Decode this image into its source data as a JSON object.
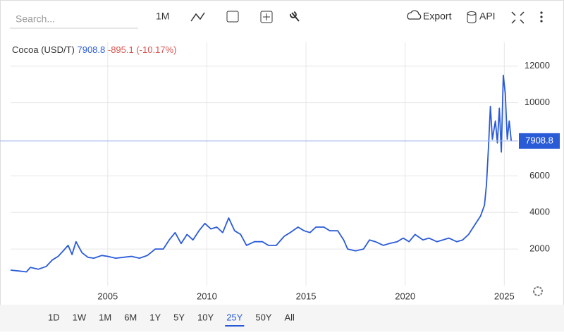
{
  "toolbar": {
    "search_placeholder": "Search...",
    "interval": "1M",
    "export": "Export",
    "api": "API"
  },
  "chart_data": {
    "type": "line",
    "last": 7908.8,
    "change": "-895.1 (-10.17%)",
    "x": [
      2000.1,
      2000.5,
      2000.9,
      2001.1,
      2001.5,
      2001.9,
      2002.2,
      2002.5,
      2002.8,
      2003.0,
      2003.2,
      2003.4,
      2003.7,
      2004.0,
      2004.3,
      2004.7,
      2005.0,
      2005.4,
      2005.8,
      2006.2,
      2006.6,
      2007.0,
      2007.4,
      2007.8,
      2008.1,
      2008.4,
      2008.7,
      2009.0,
      2009.3,
      2009.6,
      2009.9,
      2010.2,
      2010.5,
      2010.8,
      2011.1,
      2011.4,
      2011.7,
      2012.0,
      2012.4,
      2012.8,
      2013.1,
      2013.5,
      2013.9,
      2014.2,
      2014.6,
      2014.9,
      2015.2,
      2015.5,
      2015.9,
      2016.2,
      2016.6,
      2016.9,
      2017.1,
      2017.5,
      2017.9,
      2018.2,
      2018.5,
      2018.9,
      2019.2,
      2019.6,
      2019.9,
      2020.2,
      2020.5,
      2020.9,
      2021.2,
      2021.6,
      2021.9,
      2022.2,
      2022.6,
      2022.9,
      2023.2,
      2023.5,
      2023.8,
      2024.0,
      2024.1,
      2024.2,
      2024.3,
      2024.4,
      2024.55,
      2024.65,
      2024.75,
      2024.85,
      2024.95,
      2025.05,
      2025.15,
      2025.25,
      2025.35
    ],
    "series": [
      {
        "name": "Cocoa (USD/T)",
        "color": "#2a5bd7",
        "values": [
          850,
          800,
          750,
          1000,
          900,
          1050,
          1400,
          1600,
          1950,
          2200,
          1700,
          2400,
          1800,
          1550,
          1500,
          1650,
          1600,
          1500,
          1550,
          1600,
          1500,
          1650,
          2000,
          2000,
          2500,
          2900,
          2300,
          2800,
          2500,
          3000,
          3400,
          3100,
          3200,
          2900,
          3700,
          3000,
          2800,
          2200,
          2400,
          2400,
          2200,
          2200,
          2700,
          2900,
          3200,
          3000,
          2900,
          3200,
          3200,
          3000,
          3000,
          2500,
          2000,
          1900,
          2000,
          2500,
          2400,
          2200,
          2300,
          2400,
          2600,
          2400,
          2800,
          2500,
          2600,
          2400,
          2500,
          2600,
          2400,
          2500,
          2800,
          3300,
          3800,
          4400,
          5500,
          7500,
          9800,
          8000,
          9000,
          7800,
          9700,
          7300,
          11500,
          10500,
          8000,
          9000,
          7900
        ]
      }
    ],
    "xlim": [
      2000.1,
      2025.7
    ],
    "ylim": [
      0,
      13300
    ],
    "xticks": [
      2005,
      2010,
      2015,
      2020,
      2025
    ],
    "yticks": [
      2000,
      4000,
      6000,
      10000,
      12000
    ],
    "grid": true,
    "ranges": [
      "1D",
      "1W",
      "1M",
      "6M",
      "1Y",
      "5Y",
      "10Y",
      "25Y",
      "50Y",
      "All"
    ],
    "selected_range": "25Y"
  }
}
